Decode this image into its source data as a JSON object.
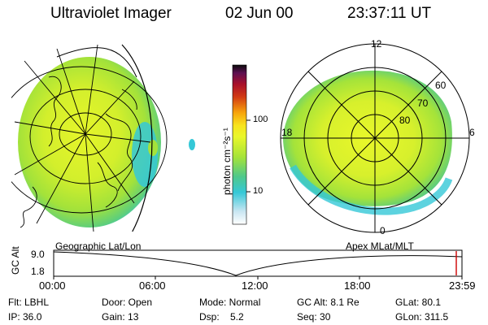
{
  "header": {
    "title": "Ultraviolet Imager",
    "date": "02 Jun 00",
    "time": "23:37:11 UT"
  },
  "colorbar": {
    "unit_label": "photon cm⁻²s⁻¹",
    "ticks": [
      "100",
      "10"
    ],
    "scale": "log",
    "colors": [
      "#ffffff",
      "#c9e6f2",
      "#35c8d7",
      "#4fc88a",
      "#a4e33a",
      "#e9f72a",
      "#f8e41e",
      "#f7a40c",
      "#d23a14",
      "#a80f2a",
      "#5d0f52",
      "#0a0a0a"
    ]
  },
  "left_panel": {
    "label": "Geographic Lat/Lon"
  },
  "right_panel": {
    "label": "Apex MLat/MLT",
    "mlt_labels": {
      "top": "12",
      "left": "18",
      "right": "6",
      "bottom": "0"
    },
    "lat_labels": [
      "60",
      "70",
      "80"
    ]
  },
  "timeline": {
    "ylabel": "GC Alt",
    "ymax": "9.0",
    "ymin": "1.8",
    "xticks": [
      "00:00",
      "06:00",
      "12:00",
      "18:00",
      "23:59"
    ],
    "current_marker_color": "#cc0000"
  },
  "footer": {
    "row1": [
      "Flt: LBHL",
      "Door: Open",
      "Mode: Normal",
      "GC Alt: 8.1 Re",
      "GLat:  80.1"
    ],
    "row2": [
      "IP: 36.0",
      "Gain: 13",
      "Dsp:    5.2",
      "Seq: 30",
      "GLon: 311.5"
    ]
  }
}
